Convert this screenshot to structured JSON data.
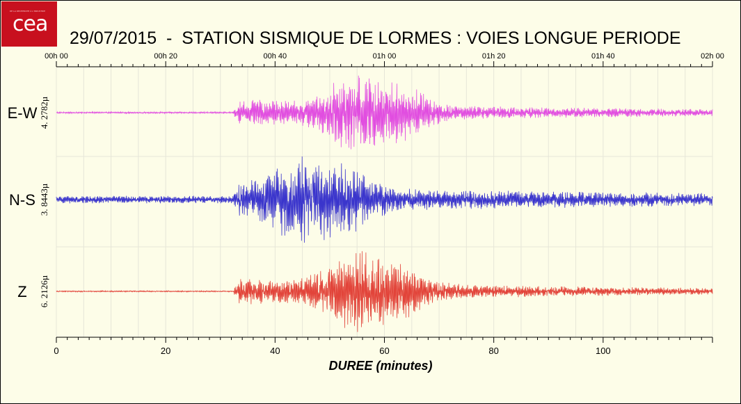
{
  "logo": {
    "text": "cea",
    "tagline": "DE LA RECHERCHE À L'INDUSTRIE"
  },
  "title": "29/07/2015  -  STATION SISMIQUE DE LORMES : VOIES LONGUE PERIODE",
  "chart_data": {
    "type": "line",
    "top_axis_ticks": [
      "00h 00",
      "00h 20",
      "00h 40",
      "01h 00",
      "01h 20",
      "01h 40",
      "02h 00"
    ],
    "bottom_axis_ticks": [
      0,
      20,
      40,
      60,
      80,
      100
    ],
    "xlabel": "DUREE (minutes)",
    "xlim": [
      0,
      120
    ],
    "grid": true,
    "series": [
      {
        "name": "E-W",
        "scale_label": "4. 2782µ",
        "color": "#e14ee0",
        "onset": 32.5,
        "peak_min": 55.3,
        "noise": 0.02
      },
      {
        "name": "N-S",
        "scale_label": "3. 8443µ",
        "color": "#3a35cc",
        "onset": 32.5,
        "peak_min": 45.5,
        "noise": 0.09
      },
      {
        "name": "Z",
        "scale_label": "6. 2126µ",
        "color": "#e2443a",
        "onset": 32.5,
        "peak_min": 55.2,
        "noise": 0.015
      }
    ]
  }
}
